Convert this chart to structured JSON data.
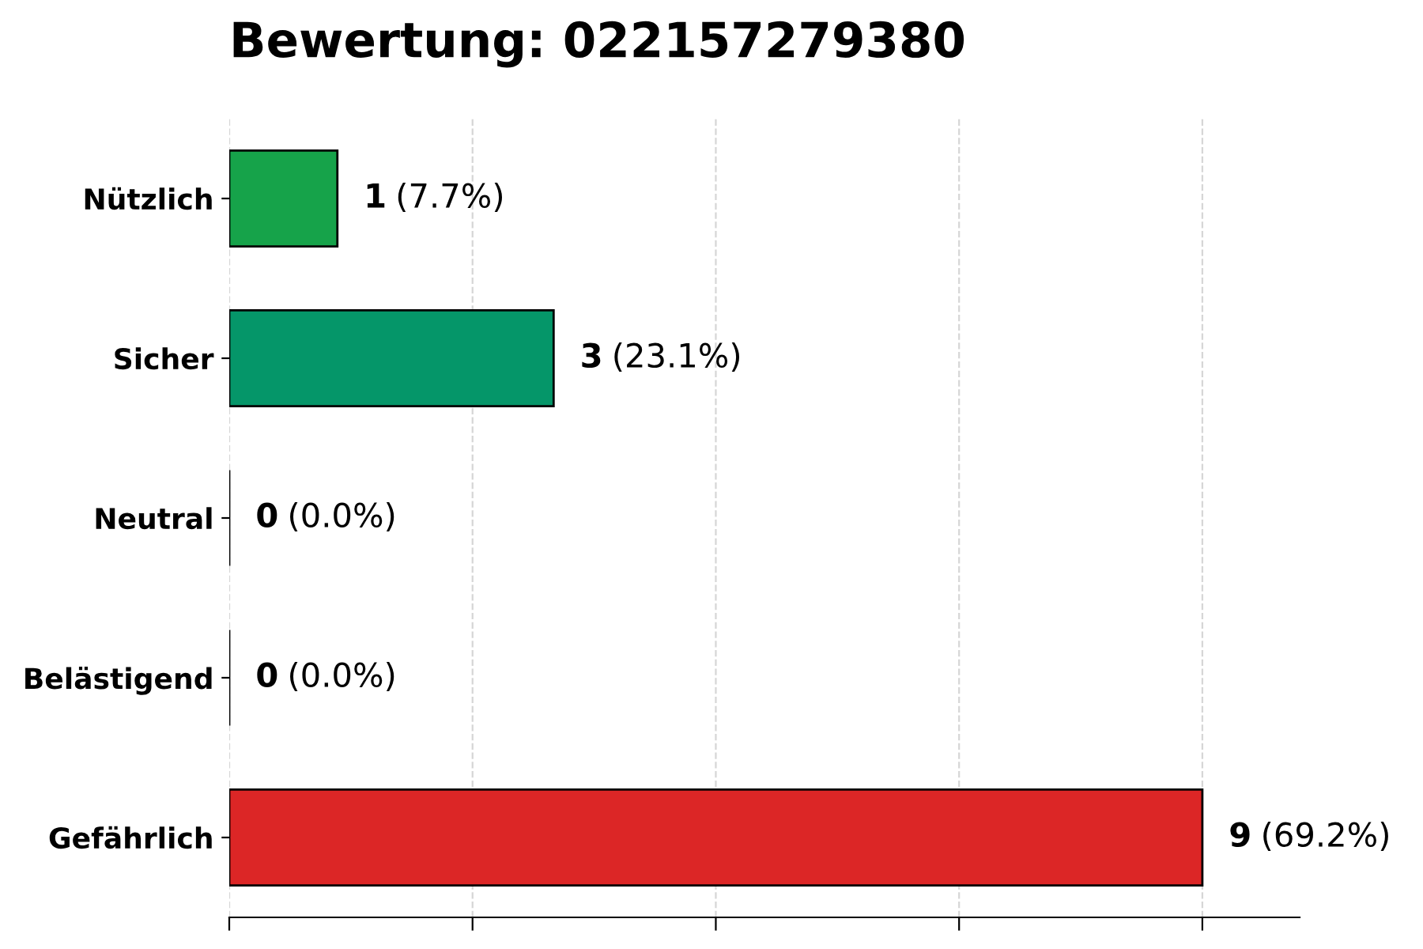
{
  "chart_data": {
    "type": "bar",
    "orientation": "horizontal",
    "title": "Bewertung: 022157279380",
    "categories": [
      "Nützlich",
      "Sicher",
      "Neutral",
      "Belästigend",
      "Gefährlich"
    ],
    "values": [
      1,
      3,
      0,
      0,
      9
    ],
    "colors": [
      "#16a34a",
      "#059669",
      "#000000",
      "#000000",
      "#dc2626"
    ],
    "data_labels": true,
    "annotations": [
      {
        "text": "(7.7%)",
        "x": 1,
        "y": "Nützlich"
      },
      {
        "text": "(23.1%)",
        "x": 3,
        "y": "Sicher"
      },
      {
        "text": "(0.0%)",
        "x": 0,
        "y": "Neutral"
      },
      {
        "text": "(0.0%)",
        "x": 0,
        "y": "Belästigend"
      },
      {
        "text": "(69.2%)",
        "x": 9,
        "y": "Gefährlich"
      }
    ],
    "xlim": [
      0,
      9.9
    ],
    "xticks": [
      {
        "value": 0,
        "label": null
      },
      {
        "value": 2.25,
        "label": null
      },
      {
        "value": 4.5,
        "label": null
      },
      {
        "value": 6.75,
        "label": null
      },
      {
        "value": 9,
        "label": null
      }
    ],
    "tick_labels": "y",
    "grid": "x"
  }
}
